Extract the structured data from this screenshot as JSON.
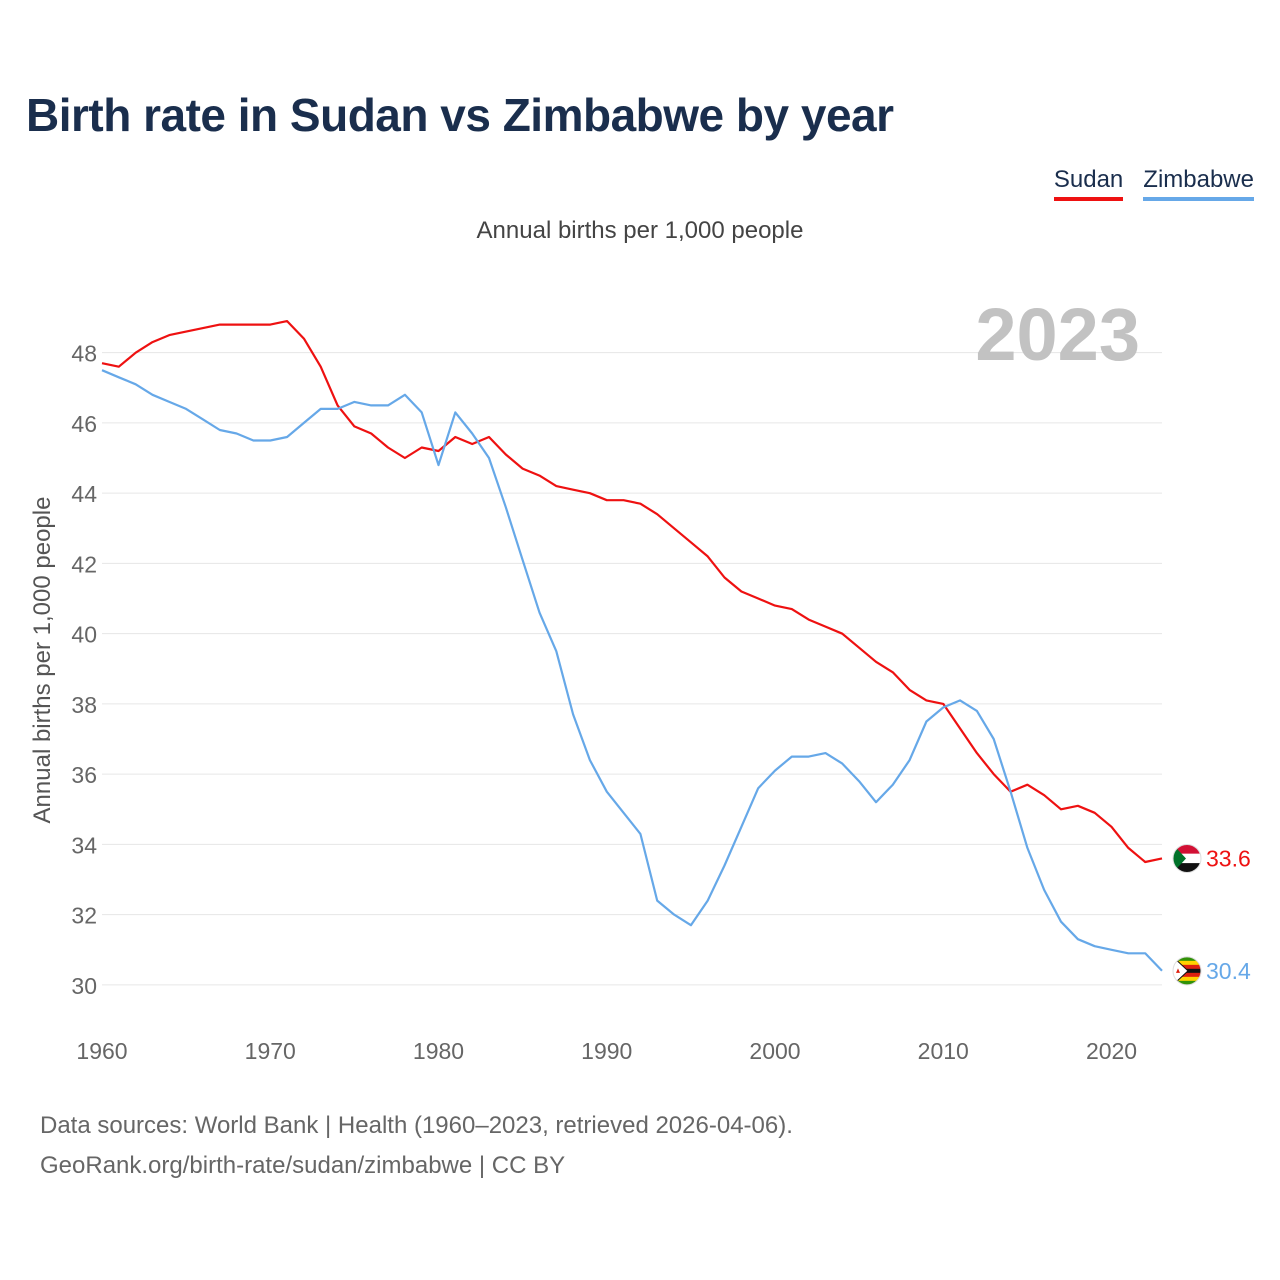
{
  "title": "Birth rate in Sudan vs Zimbabwe by year",
  "subtitle": "Annual births per 1,000 people",
  "legend": [
    {
      "label": "Sudan",
      "color": "#ee1111"
    },
    {
      "label": "Zimbabwe",
      "color": "#66a8e8"
    }
  ],
  "year_display": "2023",
  "source": {
    "line1": "Data sources: World Bank | Health (1960–2023, retrieved 2026-04-06).",
    "line2": "GeoRank.org/birth-rate/sudan/zimbabwe | CC BY"
  },
  "chart_data": {
    "type": "line",
    "title": "Birth rate in Sudan vs Zimbabwe by year",
    "xlabel": "",
    "ylabel": "Annual births per 1,000 people",
    "xlim": [
      1960,
      2023
    ],
    "ylim": [
      29,
      49.5
    ],
    "xticks": [
      1960,
      1970,
      1980,
      1990,
      2000,
      2010,
      2020
    ],
    "yticks": [
      30,
      32,
      34,
      36,
      38,
      40,
      42,
      44,
      46,
      48
    ],
    "grid": true,
    "legend_position": "top-right",
    "x": [
      1960,
      1961,
      1962,
      1963,
      1964,
      1965,
      1966,
      1967,
      1968,
      1969,
      1970,
      1971,
      1972,
      1973,
      1974,
      1975,
      1976,
      1977,
      1978,
      1979,
      1980,
      1981,
      1982,
      1983,
      1984,
      1985,
      1986,
      1987,
      1988,
      1989,
      1990,
      1991,
      1992,
      1993,
      1994,
      1995,
      1996,
      1997,
      1998,
      1999,
      2000,
      2001,
      2002,
      2003,
      2004,
      2005,
      2006,
      2007,
      2008,
      2009,
      2010,
      2011,
      2012,
      2013,
      2014,
      2015,
      2016,
      2017,
      2018,
      2019,
      2020,
      2021,
      2022,
      2023
    ],
    "series": [
      {
        "name": "Sudan",
        "color": "#ee1111",
        "end_label": "33.6",
        "values": [
          47.7,
          47.6,
          48.0,
          48.3,
          48.5,
          48.6,
          48.7,
          48.8,
          48.8,
          48.8,
          48.8,
          48.9,
          48.4,
          47.6,
          46.5,
          45.9,
          45.7,
          45.3,
          45.0,
          45.3,
          45.2,
          45.6,
          45.4,
          45.6,
          45.1,
          44.7,
          44.5,
          44.2,
          44.1,
          44.0,
          43.8,
          43.8,
          43.7,
          43.4,
          43.0,
          42.6,
          42.2,
          41.6,
          41.2,
          41.0,
          40.8,
          40.7,
          40.4,
          40.2,
          40.0,
          39.6,
          39.2,
          38.9,
          38.4,
          38.1,
          38.0,
          37.3,
          36.6,
          36.0,
          35.5,
          35.7,
          35.4,
          35.0,
          35.1,
          34.9,
          34.5,
          33.9,
          33.5,
          33.6
        ]
      },
      {
        "name": "Zimbabwe",
        "color": "#66a8e8",
        "end_label": "30.4",
        "values": [
          47.5,
          47.3,
          47.1,
          46.8,
          46.6,
          46.4,
          46.1,
          45.8,
          45.7,
          45.5,
          45.5,
          45.6,
          46.0,
          46.4,
          46.4,
          46.6,
          46.5,
          46.5,
          46.8,
          46.3,
          44.8,
          46.3,
          45.7,
          45.0,
          43.6,
          42.1,
          40.6,
          39.5,
          37.7,
          36.4,
          35.5,
          34.9,
          34.3,
          32.4,
          32.0,
          31.7,
          32.4,
          33.4,
          34.5,
          35.6,
          36.1,
          36.5,
          36.5,
          36.6,
          36.3,
          35.8,
          35.2,
          35.7,
          36.4,
          37.5,
          37.9,
          38.1,
          37.8,
          37.0,
          35.5,
          33.9,
          32.7,
          31.8,
          31.3,
          31.1,
          31.0,
          30.9,
          30.9,
          30.4
        ]
      }
    ]
  }
}
